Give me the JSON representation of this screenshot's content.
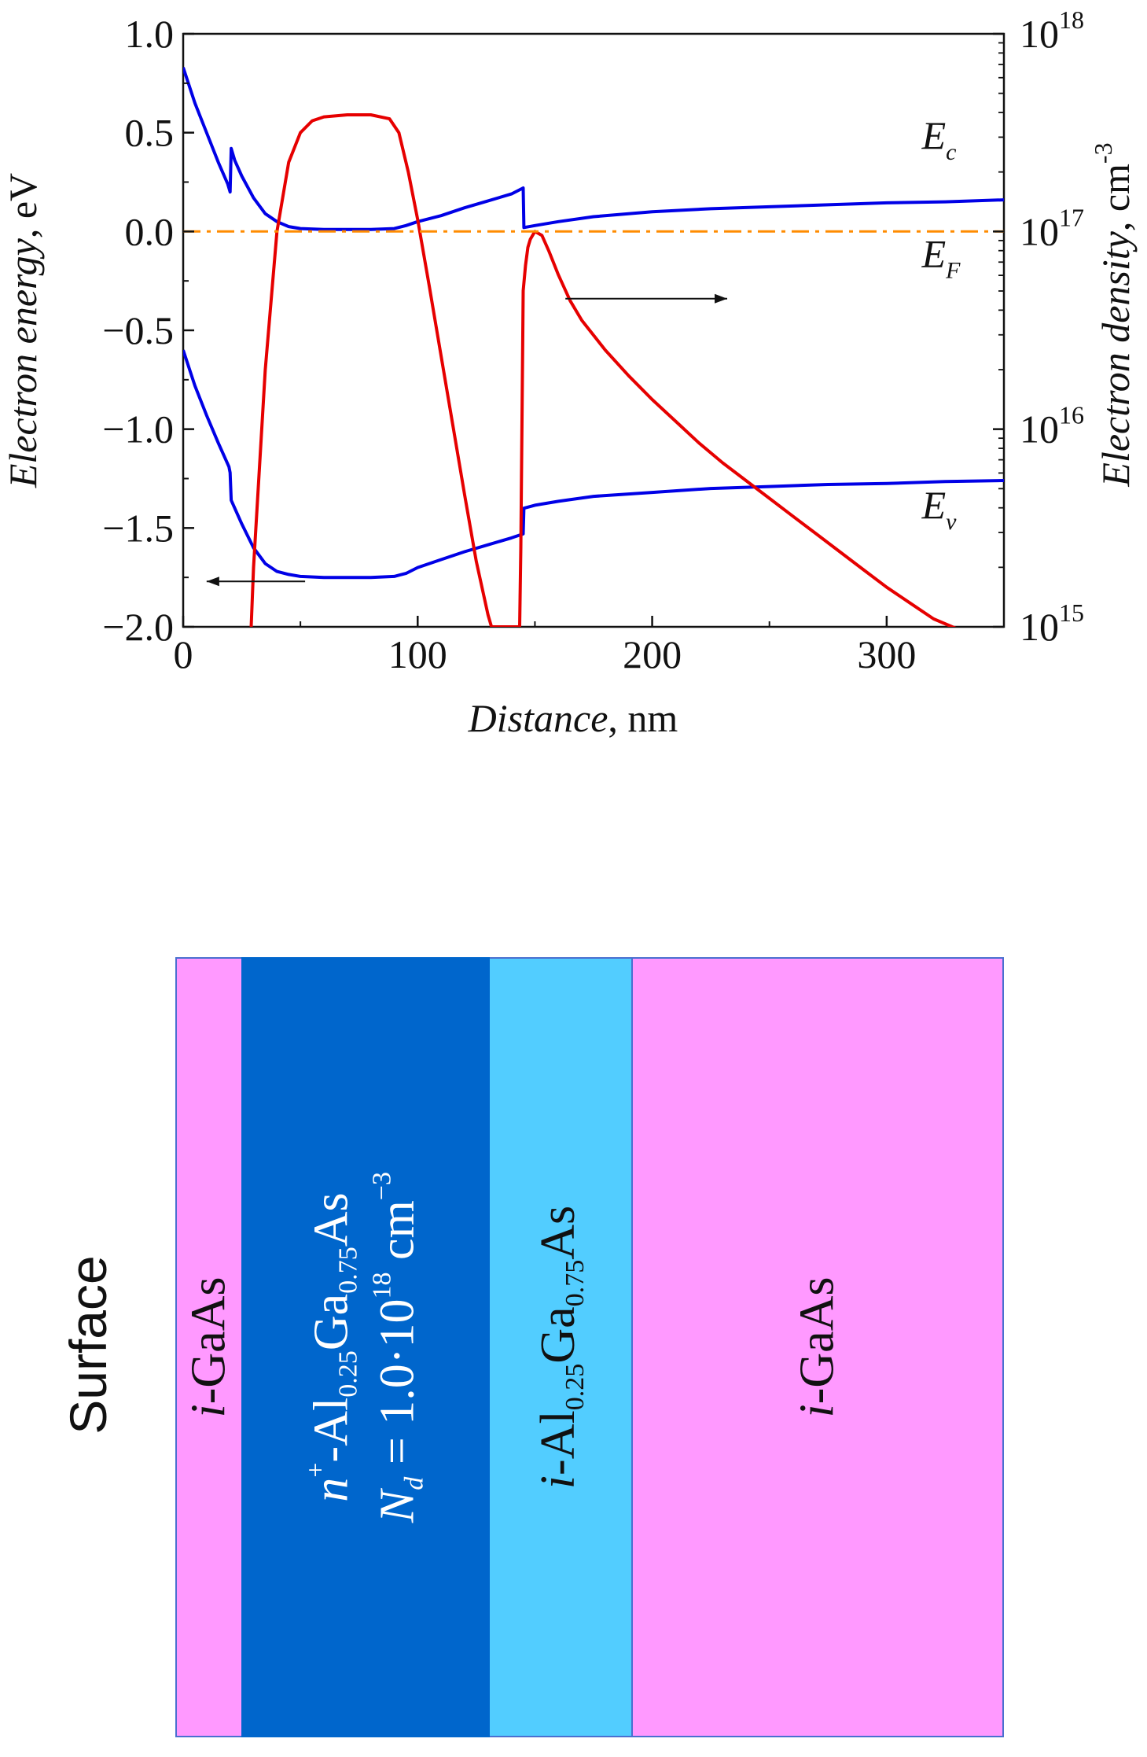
{
  "chart_data": {
    "type": "line",
    "xlabel": "Distance",
    "xunit": ", nm",
    "ylabel_left": "Electron energy",
    "ylabel_left_unit": ", eV",
    "ylabel_right": "Electron density",
    "ylabel_right_unit": ", cm",
    "ylabel_right_unit_exp": "-3",
    "xlim": [
      0,
      350
    ],
    "ylim_left": [
      -2.0,
      1.0
    ],
    "ylim_right_log10": [
      15,
      18
    ],
    "x_ticks": [
      {
        "v": 0,
        "label": "0"
      },
      {
        "v": 100,
        "label": "100"
      },
      {
        "v": 200,
        "label": "200"
      },
      {
        "v": 300,
        "label": "300"
      }
    ],
    "y_left_ticks": [
      {
        "v": 1.0,
        "label": "1.0"
      },
      {
        "v": 0.5,
        "label": "0.5"
      },
      {
        "v": 0.0,
        "label": "0.0"
      },
      {
        "v": -0.5,
        "label": "−0.5"
      },
      {
        "v": -1.0,
        "label": "−1.0"
      },
      {
        "v": -1.5,
        "label": "−1.5"
      },
      {
        "v": -2.0,
        "label": "−2.0"
      }
    ],
    "y_right_ticks": [
      {
        "exp": 18,
        "base": "10",
        "sup": "18"
      },
      {
        "exp": 17,
        "base": "10",
        "sup": "17"
      },
      {
        "exp": 16,
        "base": "10",
        "sup": "16"
      },
      {
        "exp": 15,
        "base": "10",
        "sup": "15"
      }
    ],
    "annotations": [
      {
        "main": "E",
        "sub": "c",
        "x": 315,
        "y": 0.42
      },
      {
        "main": "E",
        "sub": "F",
        "x": 315,
        "y": -0.18
      },
      {
        "main": "E",
        "sub": "v",
        "x": 315,
        "y": -1.45
      }
    ],
    "series": [
      {
        "name": "Ec",
        "axis": "left",
        "color": "#0000e6",
        "points": [
          [
            0,
            0.83
          ],
          [
            5,
            0.65
          ],
          [
            10,
            0.5
          ],
          [
            15,
            0.35
          ],
          [
            19,
            0.24
          ],
          [
            20,
            0.2
          ],
          [
            20.5,
            0.42
          ],
          [
            22,
            0.36
          ],
          [
            25,
            0.28
          ],
          [
            30,
            0.17
          ],
          [
            35,
            0.09
          ],
          [
            40,
            0.05
          ],
          [
            45,
            0.025
          ],
          [
            50,
            0.015
          ],
          [
            60,
            0.01
          ],
          [
            70,
            0.01
          ],
          [
            80,
            0.01
          ],
          [
            90,
            0.015
          ],
          [
            95,
            0.03
          ],
          [
            100,
            0.05
          ],
          [
            110,
            0.08
          ],
          [
            120,
            0.12
          ],
          [
            130,
            0.155
          ],
          [
            140,
            0.19
          ],
          [
            145,
            0.22
          ],
          [
            145.3,
            0.02
          ],
          [
            150,
            0.03
          ],
          [
            160,
            0.05
          ],
          [
            175,
            0.075
          ],
          [
            200,
            0.1
          ],
          [
            225,
            0.115
          ],
          [
            250,
            0.125
          ],
          [
            275,
            0.135
          ],
          [
            300,
            0.145
          ],
          [
            325,
            0.15
          ],
          [
            350,
            0.16
          ]
        ]
      },
      {
        "name": "Ev",
        "axis": "left",
        "color": "#0000e6",
        "points": [
          [
            0,
            -0.6
          ],
          [
            5,
            -0.78
          ],
          [
            10,
            -0.93
          ],
          [
            15,
            -1.07
          ],
          [
            19.5,
            -1.19
          ],
          [
            20,
            -1.22
          ],
          [
            20.5,
            -1.36
          ],
          [
            25,
            -1.48
          ],
          [
            30,
            -1.6
          ],
          [
            35,
            -1.68
          ],
          [
            40,
            -1.72
          ],
          [
            45,
            -1.735
          ],
          [
            50,
            -1.745
          ],
          [
            60,
            -1.75
          ],
          [
            70,
            -1.75
          ],
          [
            80,
            -1.75
          ],
          [
            90,
            -1.745
          ],
          [
            95,
            -1.73
          ],
          [
            100,
            -1.7
          ],
          [
            110,
            -1.66
          ],
          [
            120,
            -1.62
          ],
          [
            130,
            -1.585
          ],
          [
            140,
            -1.55
          ],
          [
            145,
            -1.53
          ],
          [
            145.3,
            -1.4
          ],
          [
            150,
            -1.385
          ],
          [
            160,
            -1.365
          ],
          [
            175,
            -1.34
          ],
          [
            200,
            -1.32
          ],
          [
            225,
            -1.3
          ],
          [
            250,
            -1.29
          ],
          [
            275,
            -1.28
          ],
          [
            300,
            -1.275
          ],
          [
            325,
            -1.265
          ],
          [
            350,
            -1.26
          ]
        ]
      },
      {
        "name": "Electron density",
        "axis": "right",
        "color": "#e60000",
        "points": [
          [
            29,
            15.0
          ],
          [
            30,
            15.3
          ],
          [
            35,
            16.3
          ],
          [
            40,
            17.0
          ],
          [
            45,
            17.35
          ],
          [
            50,
            17.5
          ],
          [
            55,
            17.56
          ],
          [
            60,
            17.58
          ],
          [
            70,
            17.59
          ],
          [
            80,
            17.59
          ],
          [
            88,
            17.57
          ],
          [
            92,
            17.5
          ],
          [
            96,
            17.3
          ],
          [
            100,
            17.06
          ],
          [
            105,
            16.72
          ],
          [
            110,
            16.37
          ],
          [
            115,
            16.02
          ],
          [
            120,
            15.67
          ],
          [
            125,
            15.33
          ],
          [
            130,
            15.06
          ],
          [
            131.5,
            15.0
          ],
          [
            143.5,
            15.0
          ],
          [
            144,
            15.4
          ],
          [
            145,
            16.7
          ],
          [
            146,
            16.83
          ],
          [
            147,
            16.92
          ],
          [
            148,
            16.96
          ],
          [
            150,
            17.0
          ],
          [
            153,
            16.98
          ],
          [
            156,
            16.9
          ],
          [
            160,
            16.78
          ],
          [
            165,
            16.65
          ],
          [
            170,
            16.55
          ],
          [
            180,
            16.4
          ],
          [
            190,
            16.27
          ],
          [
            200,
            16.15
          ],
          [
            210,
            16.04
          ],
          [
            220,
            15.93
          ],
          [
            230,
            15.83
          ],
          [
            240,
            15.74
          ],
          [
            250,
            15.65
          ],
          [
            260,
            15.56
          ],
          [
            270,
            15.47
          ],
          [
            280,
            15.38
          ],
          [
            290,
            15.29
          ],
          [
            300,
            15.2
          ],
          [
            310,
            15.12
          ],
          [
            320,
            15.04
          ],
          [
            330,
            14.99
          ]
        ]
      },
      {
        "name": "EF",
        "axis": "left",
        "color": "#ff8c00",
        "dash": true,
        "points": [
          [
            0,
            0.0
          ],
          [
            350,
            0.0
          ]
        ]
      }
    ],
    "arrows": [
      {
        "name": "arrow-to-right-axis",
        "from": [
          163,
          -0.34
        ],
        "to": [
          232,
          -0.34
        ]
      },
      {
        "name": "arrow-to-left-axis",
        "from": [
          52,
          -1.77
        ],
        "to": [
          10,
          -1.77
        ]
      }
    ]
  },
  "layers": [
    {
      "id": "i-gaas-cap",
      "thickness_nm": 10,
      "color": "#ff99ff",
      "lines": [
        {
          "italic": "i",
          "text": "-GaAs"
        }
      ]
    },
    {
      "id": "n-algaas",
      "thickness_nm": 37,
      "color": "#0066cc",
      "text_color": "#ffffff",
      "lines": [
        {
          "italic": "n",
          "sup": "+",
          "text": "-Al",
          "sub1": "0.25",
          "mid": "Ga",
          "sub2": "0.75",
          "end": "As"
        },
        {
          "italic": "N",
          "sub_italic": "d",
          "text": " = 1.0·10",
          "sup2": "18",
          "end": " cm",
          "sup3": "−3"
        }
      ]
    },
    {
      "id": "i-algaas",
      "thickness_nm": 21,
      "color": "#52cdff",
      "lines": [
        {
          "italic": "i",
          "text": "-Al",
          "sub1": "0.25",
          "mid": "Ga",
          "sub2": "0.75",
          "end": "As"
        }
      ]
    },
    {
      "id": "i-gaas-buffer",
      "thickness_nm": 56,
      "color": "#ff99ff",
      "lines": [
        {
          "italic": "i",
          "text": "-GaAs"
        }
      ]
    }
  ],
  "surface_label": "Surface"
}
